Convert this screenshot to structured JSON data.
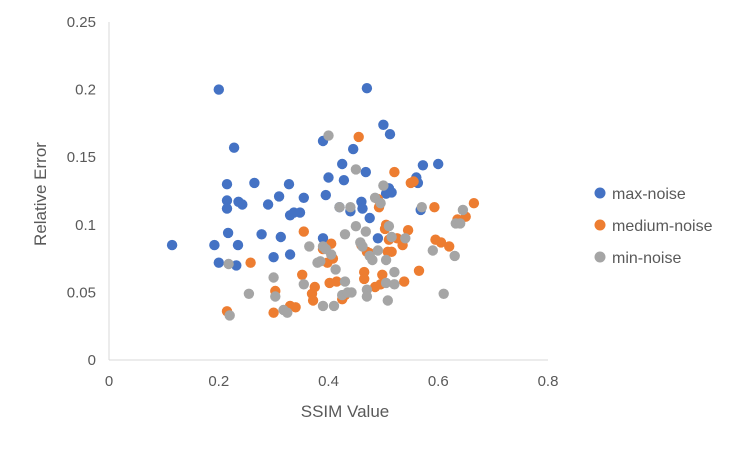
{
  "chart_data": {
    "type": "scatter",
    "xlabel": "SSIM Value",
    "ylabel": "Relative Error",
    "xlim": [
      0,
      0.8
    ],
    "ylim": [
      0,
      0.25
    ],
    "x_ticks": [
      "0",
      "0.2",
      "0.4",
      "0.6",
      "0.8"
    ],
    "y_ticks": [
      "0",
      "0.05",
      "0.1",
      "0.15",
      "0.2",
      "0.25"
    ],
    "grid": false,
    "legend_position": "right",
    "series": [
      {
        "name": "max-noise",
        "color": "#4472C4",
        "points": [
          [
            0.115,
            0.085
          ],
          [
            0.192,
            0.085
          ],
          [
            0.2,
            0.2
          ],
          [
            0.2,
            0.072
          ],
          [
            0.215,
            0.13
          ],
          [
            0.215,
            0.118
          ],
          [
            0.215,
            0.112
          ],
          [
            0.217,
            0.094
          ],
          [
            0.228,
            0.157
          ],
          [
            0.232,
            0.07
          ],
          [
            0.235,
            0.085
          ],
          [
            0.236,
            0.117
          ],
          [
            0.243,
            0.115
          ],
          [
            0.265,
            0.131
          ],
          [
            0.278,
            0.093
          ],
          [
            0.29,
            0.115
          ],
          [
            0.3,
            0.076
          ],
          [
            0.31,
            0.121
          ],
          [
            0.313,
            0.091
          ],
          [
            0.328,
            0.13
          ],
          [
            0.33,
            0.107
          ],
          [
            0.33,
            0.078
          ],
          [
            0.337,
            0.109
          ],
          [
            0.348,
            0.109
          ],
          [
            0.355,
            0.12
          ],
          [
            0.39,
            0.162
          ],
          [
            0.39,
            0.09
          ],
          [
            0.395,
            0.122
          ],
          [
            0.4,
            0.135
          ],
          [
            0.42,
            0.113
          ],
          [
            0.425,
            0.145
          ],
          [
            0.428,
            0.133
          ],
          [
            0.44,
            0.11
          ],
          [
            0.445,
            0.156
          ],
          [
            0.46,
            0.117
          ],
          [
            0.462,
            0.112
          ],
          [
            0.468,
            0.139
          ],
          [
            0.47,
            0.201
          ],
          [
            0.475,
            0.105
          ],
          [
            0.49,
            0.09
          ],
          [
            0.5,
            0.174
          ],
          [
            0.505,
            0.123
          ],
          [
            0.51,
            0.127
          ],
          [
            0.512,
            0.167
          ],
          [
            0.515,
            0.124
          ],
          [
            0.56,
            0.135
          ],
          [
            0.563,
            0.131
          ],
          [
            0.568,
            0.111
          ],
          [
            0.572,
            0.144
          ],
          [
            0.6,
            0.145
          ]
        ]
      },
      {
        "name": "medium-noise",
        "color": "#ED7D31",
        "points": [
          [
            0.215,
            0.036
          ],
          [
            0.258,
            0.072
          ],
          [
            0.3,
            0.035
          ],
          [
            0.303,
            0.051
          ],
          [
            0.33,
            0.04
          ],
          [
            0.34,
            0.039
          ],
          [
            0.352,
            0.063
          ],
          [
            0.355,
            0.095
          ],
          [
            0.37,
            0.049
          ],
          [
            0.372,
            0.044
          ],
          [
            0.375,
            0.054
          ],
          [
            0.39,
            0.082
          ],
          [
            0.398,
            0.072
          ],
          [
            0.402,
            0.057
          ],
          [
            0.405,
            0.086
          ],
          [
            0.408,
            0.075
          ],
          [
            0.415,
            0.058
          ],
          [
            0.425,
            0.045
          ],
          [
            0.43,
            0.048
          ],
          [
            0.455,
            0.165
          ],
          [
            0.46,
            0.085
          ],
          [
            0.465,
            0.065
          ],
          [
            0.465,
            0.06
          ],
          [
            0.47,
            0.08
          ],
          [
            0.475,
            0.079
          ],
          [
            0.485,
            0.054
          ],
          [
            0.49,
            0.119
          ],
          [
            0.492,
            0.113
          ],
          [
            0.495,
            0.056
          ],
          [
            0.498,
            0.063
          ],
          [
            0.503,
            0.097
          ],
          [
            0.505,
            0.1
          ],
          [
            0.508,
            0.08
          ],
          [
            0.51,
            0.089
          ],
          [
            0.515,
            0.08
          ],
          [
            0.52,
            0.139
          ],
          [
            0.525,
            0.09
          ],
          [
            0.535,
            0.085
          ],
          [
            0.538,
            0.058
          ],
          [
            0.545,
            0.096
          ],
          [
            0.55,
            0.131
          ],
          [
            0.565,
            0.066
          ],
          [
            0.593,
            0.113
          ],
          [
            0.595,
            0.089
          ],
          [
            0.605,
            0.087
          ],
          [
            0.62,
            0.084
          ],
          [
            0.635,
            0.104
          ],
          [
            0.65,
            0.106
          ],
          [
            0.665,
            0.116
          ],
          [
            0.555,
            0.132
          ]
        ]
      },
      {
        "name": "min-noise",
        "color": "#A5A5A5",
        "points": [
          [
            0.218,
            0.071
          ],
          [
            0.22,
            0.033
          ],
          [
            0.255,
            0.049
          ],
          [
            0.3,
            0.061
          ],
          [
            0.303,
            0.047
          ],
          [
            0.318,
            0.037
          ],
          [
            0.325,
            0.035
          ],
          [
            0.355,
            0.056
          ],
          [
            0.365,
            0.084
          ],
          [
            0.38,
            0.072
          ],
          [
            0.385,
            0.073
          ],
          [
            0.39,
            0.084
          ],
          [
            0.39,
            0.04
          ],
          [
            0.395,
            0.082
          ],
          [
            0.4,
            0.166
          ],
          [
            0.405,
            0.078
          ],
          [
            0.41,
            0.04
          ],
          [
            0.413,
            0.067
          ],
          [
            0.42,
            0.113
          ],
          [
            0.425,
            0.048
          ],
          [
            0.43,
            0.058
          ],
          [
            0.43,
            0.093
          ],
          [
            0.435,
            0.05
          ],
          [
            0.44,
            0.113
          ],
          [
            0.442,
            0.05
          ],
          [
            0.45,
            0.141
          ],
          [
            0.45,
            0.099
          ],
          [
            0.458,
            0.087
          ],
          [
            0.462,
            0.084
          ],
          [
            0.468,
            0.095
          ],
          [
            0.47,
            0.052
          ],
          [
            0.47,
            0.047
          ],
          [
            0.475,
            0.077
          ],
          [
            0.48,
            0.074
          ],
          [
            0.485,
            0.12
          ],
          [
            0.49,
            0.081
          ],
          [
            0.495,
            0.116
          ],
          [
            0.5,
            0.129
          ],
          [
            0.505,
            0.074
          ],
          [
            0.505,
            0.057
          ],
          [
            0.508,
            0.044
          ],
          [
            0.51,
            0.099
          ],
          [
            0.515,
            0.091
          ],
          [
            0.52,
            0.065
          ],
          [
            0.52,
            0.056
          ],
          [
            0.54,
            0.09
          ],
          [
            0.57,
            0.113
          ],
          [
            0.59,
            0.081
          ],
          [
            0.61,
            0.049
          ],
          [
            0.63,
            0.077
          ],
          [
            0.632,
            0.101
          ],
          [
            0.64,
            0.101
          ],
          [
            0.645,
            0.111
          ]
        ]
      }
    ]
  }
}
